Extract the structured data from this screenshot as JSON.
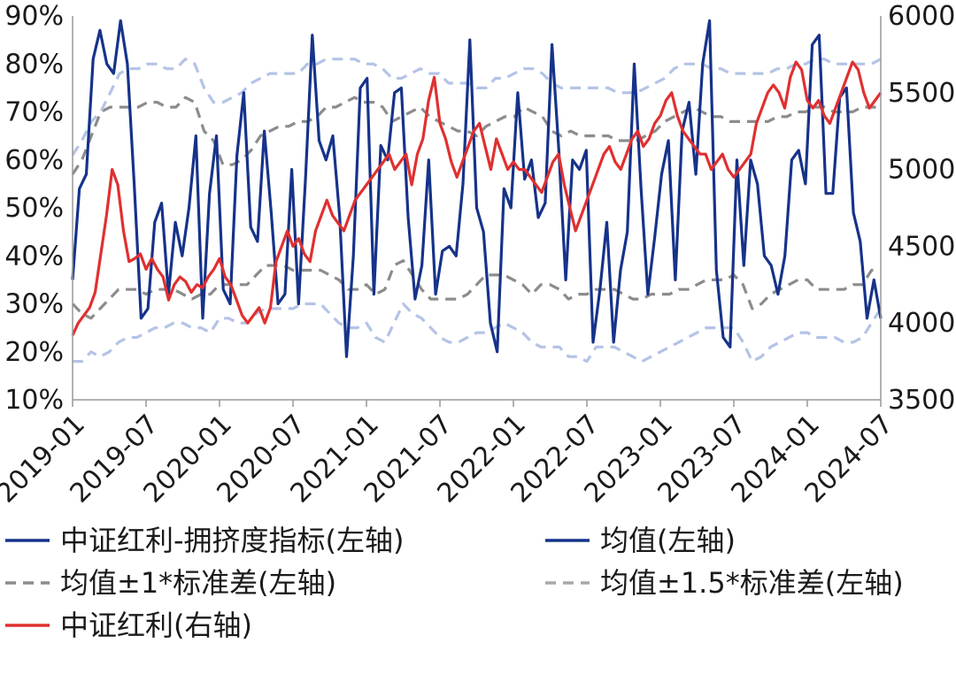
{
  "chart_data": {
    "type": "line",
    "x_start": "2019-01",
    "x_end": "2024-07",
    "x_ticks": [
      "2019-01",
      "2019-07",
      "2020-01",
      "2020-07",
      "2021-01",
      "2021-07",
      "2022-01",
      "2022-07",
      "2023-01",
      "2023-07",
      "2024-01",
      "2024-07"
    ],
    "y_left": {
      "min": 10,
      "max": 90,
      "step": 10,
      "ticks": [
        "90%",
        "80%",
        "70%",
        "60%",
        "50%",
        "40%",
        "30%",
        "20%",
        "10%"
      ]
    },
    "y_right": {
      "min": 3500,
      "max": 6000,
      "step": 500,
      "ticks": [
        "6000",
        "5500",
        "5000",
        "4500",
        "4000",
        "3500"
      ]
    },
    "grid": false,
    "legend_position": "bottom",
    "legend": [
      {
        "label": "中证红利-拥挤度指标(左轴)",
        "color": "#16338a",
        "style": "solid"
      },
      {
        "label": "均值(左轴)",
        "color": "#16338a",
        "style": "solid"
      },
      {
        "label": "均值±1*标准差(左轴)",
        "color": "#8c8c8c",
        "style": "dashed"
      },
      {
        "label": "均值±1.5*标准差(左轴)",
        "color": "#a8a8a8",
        "style": "dashed"
      },
      {
        "label": "中证红利(右轴)",
        "color": "#e03030",
        "style": "solid"
      }
    ],
    "series": [
      {
        "name": "中证红利-拥挤度指标(左轴)",
        "axis": "left",
        "color": "#16338a",
        "values": [
          35,
          54,
          57,
          81,
          87,
          80,
          78,
          89,
          80,
          55,
          27,
          29,
          47,
          51,
          32,
          47,
          40,
          50,
          65,
          27,
          53,
          65,
          33,
          30,
          61,
          74,
          46,
          43,
          66,
          49,
          30,
          32,
          58,
          30,
          56,
          86,
          64,
          60,
          65,
          48,
          19,
          40,
          75,
          77,
          32,
          63,
          60,
          74,
          75,
          48,
          31,
          38,
          60,
          32,
          41,
          42,
          40,
          55,
          85,
          50,
          45,
          26,
          20,
          54,
          50,
          74,
          56,
          60,
          48,
          51,
          84,
          62,
          35,
          60,
          58,
          62,
          22,
          33,
          47,
          22,
          37,
          45,
          80,
          54,
          32,
          44,
          57,
          64,
          35,
          66,
          72,
          57,
          80,
          89,
          37,
          23,
          21,
          60,
          38,
          60,
          55,
          40,
          38,
          32,
          40,
          60,
          62,
          55,
          84,
          86,
          53,
          53,
          73,
          75,
          49,
          43,
          27,
          35,
          27
        ]
      },
      {
        "name": "均值(左轴)",
        "axis": "left",
        "color": "#16338a",
        "values": []
      },
      {
        "name": "均值+1*标准差(左轴)",
        "axis": "left",
        "color": "#8c8c8c",
        "values": [
          57,
          60,
          65,
          70,
          71,
          71,
          71,
          71,
          72,
          72,
          71,
          71,
          73,
          72,
          66,
          64,
          59,
          59,
          60,
          62,
          65,
          66,
          67,
          67,
          68,
          68,
          69,
          71,
          71,
          72,
          73,
          72,
          72,
          71,
          68,
          69,
          70,
          71,
          69,
          68,
          67,
          66,
          66,
          65,
          67,
          68,
          69,
          69,
          71,
          70,
          69,
          66,
          65,
          66,
          65,
          65,
          65,
          65,
          64,
          64,
          64,
          65,
          66,
          68,
          69,
          70,
          71,
          70,
          69,
          69,
          68,
          68,
          68,
          68,
          68,
          69,
          69,
          70,
          70,
          71,
          71,
          70,
          70,
          70,
          71,
          71,
          71
        ]
      },
      {
        "name": "均值-1*标准差(左轴)",
        "axis": "left",
        "color": "#8c8c8c",
        "values": [
          30,
          28,
          27,
          29,
          31,
          33,
          33,
          33,
          32,
          33,
          33,
          33,
          32,
          31,
          32,
          32,
          34,
          34,
          34,
          34,
          36,
          38,
          38,
          38,
          37,
          37,
          37,
          37,
          36,
          35,
          33,
          33,
          34,
          32,
          33,
          38,
          39,
          36,
          33,
          31,
          31,
          31,
          31,
          32,
          34,
          36,
          36,
          36,
          35,
          34,
          32,
          34,
          34,
          33,
          31,
          32,
          32,
          33,
          33,
          33,
          32,
          31,
          31,
          32,
          32,
          32,
          33,
          33,
          34,
          35,
          35,
          35,
          36,
          34,
          29,
          30,
          32,
          33,
          34,
          35,
          35,
          33,
          33,
          33,
          33,
          34,
          34,
          37,
          37
        ]
      },
      {
        "name": "均值+1.5*标准差(左轴)",
        "axis": "left",
        "color": "#a8a8a8",
        "values": [
          61,
          64,
          68,
          70,
          74,
          78,
          79,
          79,
          80,
          80,
          79,
          79,
          81,
          80,
          75,
          72,
          72,
          73,
          74,
          76,
          77,
          78,
          78,
          78,
          78,
          80,
          80,
          81,
          81,
          81,
          81,
          80,
          80,
          79,
          77,
          77,
          78,
          79,
          78,
          78,
          76,
          76,
          76,
          75,
          75,
          77,
          77,
          78,
          79,
          79,
          78,
          76,
          75,
          75,
          75,
          75,
          75,
          75,
          74,
          74,
          74,
          75,
          76,
          77,
          79,
          80,
          80,
          80,
          79,
          79,
          78,
          78,
          78,
          78,
          78,
          79,
          79,
          80,
          80,
          81,
          81,
          80,
          80,
          80,
          80,
          80,
          81
        ]
      },
      {
        "name": "均值-1.5*标准差(左轴)",
        "axis": "left",
        "color": "#a8a8a8",
        "values": [
          18,
          18,
          20,
          19,
          20,
          22,
          23,
          23,
          24,
          25,
          25,
          26,
          26,
          25,
          25,
          24,
          27,
          27,
          26,
          26,
          28,
          29,
          29,
          29,
          29,
          30,
          30,
          30,
          28,
          26,
          25,
          25,
          26,
          23,
          22,
          26,
          30,
          28,
          27,
          25,
          23,
          22,
          22,
          23,
          24,
          24,
          25,
          26,
          25,
          24,
          22,
          21,
          21,
          21,
          19,
          19,
          18,
          21,
          21,
          21,
          20,
          19,
          18,
          19,
          20,
          21,
          22,
          23,
          24,
          25,
          25,
          25,
          25,
          22,
          18,
          19,
          21,
          22,
          23,
          24,
          24,
          23,
          23,
          23,
          22,
          22,
          23,
          26,
          29
        ]
      },
      {
        "name": "中证红利(右轴)",
        "axis": "right",
        "color": "#e03030",
        "values": [
          3920,
          4000,
          4050,
          4100,
          4200,
          4450,
          4700,
          5000,
          4900,
          4600,
          4400,
          4420,
          4450,
          4350,
          4420,
          4350,
          4300,
          4150,
          4250,
          4300,
          4270,
          4200,
          4250,
          4230,
          4300,
          4350,
          4420,
          4300,
          4250,
          4150,
          4050,
          4000,
          4050,
          4100,
          4000,
          4100,
          4400,
          4500,
          4600,
          4500,
          4550,
          4450,
          4400,
          4600,
          4700,
          4800,
          4700,
          4650,
          4600,
          4700,
          4800,
          4850,
          4900,
          4950,
          5000,
          5050,
          5100,
          5000,
          5050,
          5100,
          4900,
          5100,
          5200,
          5450,
          5600,
          5300,
          5200,
          5050,
          4950,
          5050,
          5150,
          5250,
          5300,
          5150,
          5000,
          5200,
          5100,
          5000,
          5050,
          5000,
          5000,
          4950,
          4900,
          4850,
          4950,
          5050,
          5100,
          4900,
          4750,
          4600,
          4700,
          4800,
          4900,
          5000,
          5100,
          5150,
          5050,
          5000,
          5100,
          5200,
          5250,
          5150,
          5200,
          5300,
          5350,
          5450,
          5500,
          5350,
          5250,
          5200,
          5150,
          5100,
          5100,
          5000,
          5050,
          5100,
          5000,
          4950,
          5000,
          5050,
          5100,
          5300,
          5400,
          5500,
          5550,
          5500,
          5400,
          5600,
          5700,
          5650,
          5450,
          5400,
          5450,
          5350,
          5300,
          5400,
          5500,
          5600,
          5700,
          5650,
          5500,
          5400,
          5450,
          5500
        ]
      }
    ]
  }
}
